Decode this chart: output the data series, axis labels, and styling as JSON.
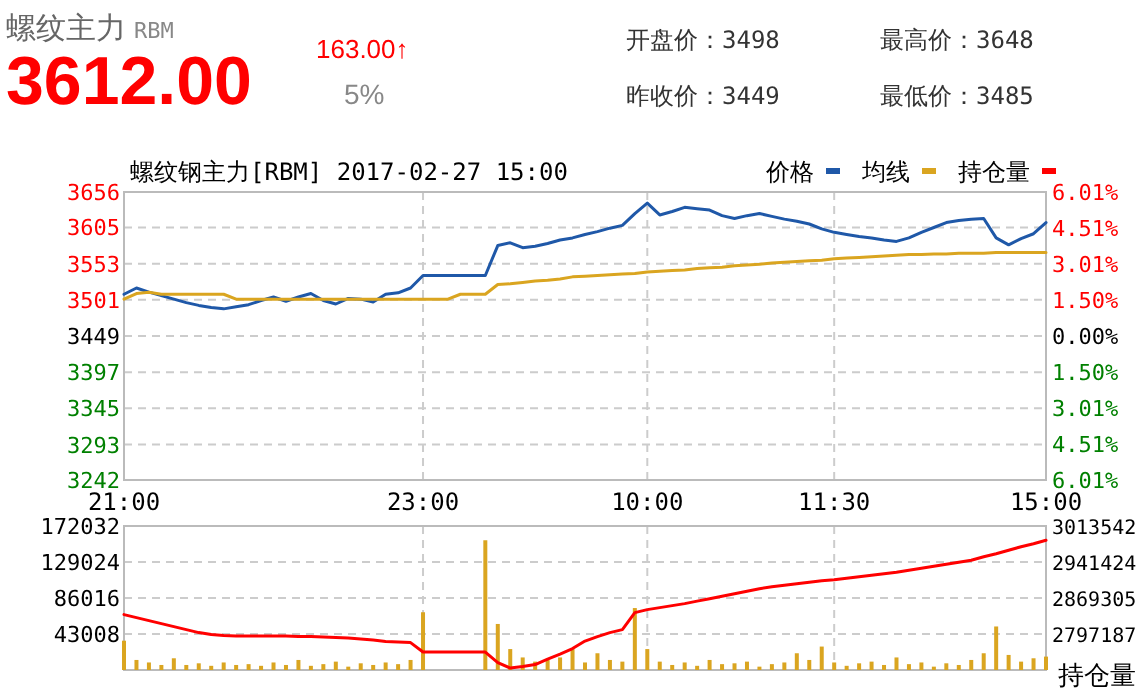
{
  "chart_data": [
    {
      "type": "other",
      "title": "螺纹主力",
      "subtitle": "RBM",
      "annotations": [
        "3612.00",
        "163.00↑",
        "5%",
        "开盘价：3498",
        "昨收价：3449",
        "最高价：3648",
        "最低价：3485"
      ]
    },
    {
      "type": "line",
      "title": "螺纹钢主力[RBM] 2017-02-27 15:00",
      "categories": [
        "21:00",
        null,
        null,
        null,
        null,
        null,
        null,
        null,
        null,
        null,
        null,
        null,
        null,
        null,
        null,
        null,
        null,
        null,
        null,
        null,
        null,
        null,
        null,
        null,
        "23:00",
        null,
        null,
        null,
        null,
        null,
        null,
        null,
        null,
        null,
        null,
        null,
        null,
        null,
        null,
        null,
        null,
        null,
        "10:00",
        null,
        null,
        null,
        null,
        null,
        null,
        null,
        null,
        null,
        null,
        null,
        null,
        null,
        null,
        "11:30",
        null,
        null,
        null,
        null,
        null,
        null,
        null,
        null,
        null,
        null,
        null,
        null,
        null,
        null,
        null,
        null,
        "15:00"
      ],
      "ylim": [
        3242,
        3656
      ],
      "yticks": [
        3242,
        3293,
        3345,
        3397,
        3449,
        3501,
        3553,
        3605,
        3656
      ],
      "y2lim": [
        -6.01,
        6.01
      ],
      "y2ticks": [
        {
          "value": -6.01,
          "label": "6.01%"
        },
        {
          "value": -4.51,
          "label": "4.51%"
        },
        {
          "value": -3.01,
          "label": "3.01%"
        },
        {
          "value": -1.5,
          "label": "1.50%"
        },
        {
          "value": 0,
          "label": "0.00%"
        },
        {
          "value": 1.5,
          "label": "1.50%"
        },
        {
          "value": 3.01,
          "label": "3.01%"
        },
        {
          "value": 4.51,
          "label": "4.51%"
        },
        {
          "value": 6.01,
          "label": "6.01%"
        }
      ],
      "grid": true,
      "legend": "top right",
      "series": [
        {
          "name": "价格",
          "color": "#1f58a8",
          "values": [
            3509,
            3518,
            3512,
            3507,
            3502,
            3497,
            3493,
            3490,
            3488,
            3491,
            3494,
            3500,
            3505,
            3499,
            3505,
            3510,
            3500,
            3495,
            3503,
            3502,
            3498,
            3509,
            3511,
            3518,
            3536,
            3536,
            3536,
            3536,
            3536,
            3536,
            3579,
            3583,
            3576,
            3578,
            3582,
            3587,
            3590,
            3595,
            3599,
            3604,
            3608,
            3625,
            3640,
            3623,
            3628,
            3634,
            3632,
            3630,
            3622,
            3618,
            3622,
            3625,
            3621,
            3617,
            3614,
            3610,
            3603,
            3598,
            3595,
            3592,
            3590,
            3587,
            3585,
            3590,
            3598,
            3605,
            3612,
            3615,
            3617,
            3618,
            3590,
            3580,
            3589,
            3596,
            3612
          ]
        },
        {
          "name": "均线",
          "color": "#daa520",
          "values": [
            3502,
            3510,
            3512,
            3509,
            3509,
            3509,
            3509,
            3509,
            3509,
            3502,
            3502,
            3502,
            3502,
            3502,
            3502,
            3502,
            3502,
            3502,
            3502,
            3502,
            3502,
            3502,
            3502,
            3502,
            3502,
            3502,
            3502,
            3509,
            3509,
            3509,
            3523,
            3524,
            3526,
            3528,
            3529,
            3531,
            3534,
            3535,
            3536,
            3537,
            3538,
            3539,
            3541,
            3542,
            3543,
            3544,
            3546,
            3547,
            3548,
            3550,
            3551,
            3552,
            3554,
            3555,
            3556,
            3557,
            3558,
            3560,
            3561,
            3562,
            3563,
            3564,
            3565,
            3566,
            3566,
            3567,
            3567,
            3568,
            3568,
            3568,
            3569,
            3569,
            3569,
            3569,
            3569
          ]
        }
      ]
    },
    {
      "type": "bar",
      "categories": [
        null,
        null,
        null,
        null,
        null,
        null,
        null,
        null,
        null,
        null,
        null,
        null,
        null,
        null,
        null,
        null,
        null,
        null,
        null,
        null,
        null,
        null,
        null,
        null,
        null,
        null,
        null,
        null,
        null,
        null,
        null,
        null,
        null,
        null,
        null,
        null,
        null,
        null,
        null,
        null,
        null,
        null,
        null,
        null,
        null,
        null,
        null,
        null,
        null,
        null,
        null,
        null,
        null,
        null,
        null,
        null,
        null,
        null,
        null,
        null,
        null,
        null,
        null,
        null,
        null,
        null,
        null,
        null,
        null,
        null,
        null,
        null,
        null,
        null,
        null
      ],
      "ylim": [
        0,
        172032
      ],
      "yticks": [
        43008,
        86016,
        129024,
        172032
      ],
      "y2lim": [
        2725068,
        3013542
      ],
      "y2ticks": [
        2797187,
        2869305,
        2941424,
        3013542
      ],
      "y2label": "持仓量",
      "grid": true,
      "series": [
        {
          "color": "#daa520",
          "values": [
            35000,
            12000,
            9000,
            6000,
            14000,
            6000,
            8000,
            5000,
            9000,
            6000,
            7000,
            5000,
            9000,
            6000,
            12000,
            5000,
            7000,
            10000,
            4000,
            8000,
            6000,
            9000,
            7000,
            12000,
            69000,
            null,
            null,
            null,
            null,
            155000,
            55000,
            25000,
            15000,
            10000,
            12000,
            15000,
            25000,
            9000,
            20000,
            12000,
            10000,
            74000,
            25000,
            10000,
            6000,
            9000,
            5000,
            12000,
            7000,
            8000,
            10000,
            4000,
            7000,
            9000,
            20000,
            12000,
            28000,
            9000,
            5000,
            8000,
            10000,
            6000,
            15000,
            7000,
            9000,
            4000,
            8000,
            6000,
            12000,
            20000,
            52000,
            18000,
            10000,
            14000,
            16000
          ]
        },
        {
          "name": "持仓量",
          "type": "line",
          "axis": "y2",
          "color": "#ff0000",
          "values": [
            2836000,
            2830000,
            2824000,
            2818000,
            2812000,
            2806000,
            2800000,
            2796000,
            2794000,
            2793000,
            2793000,
            2793000,
            2793000,
            2793000,
            2792000,
            2792000,
            2791000,
            2790000,
            2789000,
            2787000,
            2785000,
            2782000,
            2781000,
            2780000,
            2761000,
            2761000,
            2761000,
            2761000,
            2761000,
            2761000,
            2740000,
            2729000,
            2732000,
            2736000,
            2747000,
            2757000,
            2768000,
            2783000,
            2792000,
            2800000,
            2806000,
            2840000,
            2846000,
            2850000,
            2854000,
            2858000,
            2863000,
            2868000,
            2873000,
            2878000,
            2883000,
            2888000,
            2892000,
            2895000,
            2898000,
            2901000,
            2904000,
            2906000,
            2909000,
            2912000,
            2915000,
            2918000,
            2921000,
            2925000,
            2929000,
            2933000,
            2937000,
            2941000,
            2945000,
            2952000,
            2958000,
            2965000,
            2972000,
            2978000,
            2985000
          ]
        }
      ]
    }
  ]
}
